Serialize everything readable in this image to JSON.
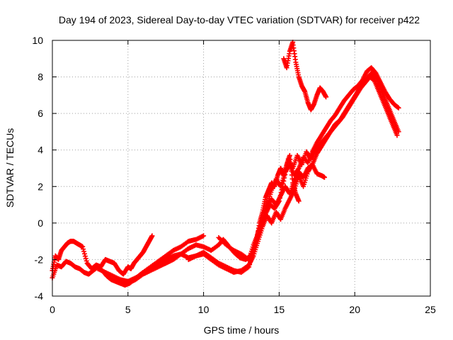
{
  "chart_data": {
    "type": "scatter",
    "title": "Day 194 of 2023, Sidereal Day-to-day VTEC variation (SDTVAR) for receiver p422",
    "xlabel": "GPS time / hours",
    "ylabel": "SDTVAR / TECUs",
    "xlim": [
      0,
      25
    ],
    "ylim": [
      -4,
      10
    ],
    "xticks": [
      "0",
      "5",
      "10",
      "15",
      "20",
      "25"
    ],
    "yticks": [
      "-4",
      "-2",
      "0",
      "2",
      "4",
      "6",
      "8",
      "10"
    ],
    "grid": true,
    "marker": "+",
    "color": "#ff0000",
    "series": [
      {
        "x": [
          0.0,
          0.2,
          0.4,
          0.6,
          0.8,
          1.0,
          1.2,
          1.4,
          1.6,
          1.8,
          2.0,
          2.3,
          2.6,
          2.9,
          3.2,
          3.5,
          3.8,
          4.1,
          4.4,
          4.7,
          5.0,
          5.2,
          5.4,
          5.6,
          5.8,
          6.0,
          6.2,
          6.4,
          6.6
        ],
        "y": [
          -2.6,
          -1.8,
          -2.0,
          -1.5,
          -1.3,
          -1.1,
          -1.0,
          -1.0,
          -1.1,
          -1.2,
          -1.3,
          -2.2,
          -2.5,
          -2.3,
          -2.4,
          -2.0,
          -2.1,
          -2.2,
          -2.6,
          -2.8,
          -2.4,
          -2.5,
          -2.2,
          -2.0,
          -1.8,
          -1.6,
          -1.3,
          -1.0,
          -0.7
        ]
      },
      {
        "x": [
          0.0,
          0.3,
          0.6,
          0.9,
          1.2,
          1.5,
          1.8,
          2.1,
          2.4,
          2.7,
          3.0,
          3.3,
          3.6,
          3.9,
          4.2,
          4.5,
          4.8,
          5.1,
          5.4,
          5.7,
          6.0,
          6.5,
          7.0,
          7.5,
          8.0,
          8.5,
          9.0,
          9.5,
          10.0
        ],
        "y": [
          -3.0,
          -2.3,
          -2.4,
          -2.1,
          -2.2,
          -2.4,
          -2.5,
          -2.7,
          -2.8,
          -2.6,
          -2.4,
          -2.6,
          -2.9,
          -3.1,
          -3.2,
          -3.3,
          -3.4,
          -3.3,
          -3.1,
          -2.9,
          -2.7,
          -2.4,
          -2.1,
          -1.8,
          -1.5,
          -1.3,
          -1.0,
          -0.9,
          -0.7
        ]
      },
      {
        "x": [
          3.0,
          3.5,
          4.0,
          4.5,
          5.0,
          5.5,
          6.0,
          6.5,
          7.0,
          7.5,
          8.0,
          8.5,
          9.0,
          9.5,
          10.0,
          10.5,
          11.0,
          11.5,
          12.0,
          12.5,
          13.0,
          13.3,
          13.6,
          13.9,
          14.2,
          14.5,
          14.8,
          15.1,
          15.4,
          15.7,
          16.0,
          16.3,
          16.6,
          16.9,
          17.2,
          17.5,
          17.8,
          18.0
        ],
        "y": [
          -2.5,
          -2.7,
          -2.9,
          -3.1,
          -3.2,
          -3.0,
          -2.8,
          -2.5,
          -2.2,
          -2.0,
          -1.8,
          -1.7,
          -1.9,
          -1.8,
          -1.6,
          -1.9,
          -2.2,
          -2.4,
          -2.6,
          -2.7,
          -2.4,
          -1.5,
          -0.5,
          0.2,
          0.9,
          1.3,
          1.0,
          1.5,
          2.0,
          1.6,
          2.3,
          2.8,
          2.5,
          3.0,
          3.2,
          2.7,
          2.6,
          2.5
        ]
      },
      {
        "x": [
          5.0,
          5.5,
          6.0,
          6.5,
          7.0,
          7.5,
          8.0,
          8.5,
          9.0,
          9.5,
          10.0,
          10.5,
          11.0,
          11.3,
          11.6,
          12.0,
          12.4,
          12.8,
          13.2,
          13.5,
          13.8,
          14.1,
          14.4,
          14.7,
          15.0,
          15.3,
          15.6,
          15.9,
          16.2,
          16.5,
          16.8,
          17.1,
          17.4,
          17.7,
          18.0,
          18.3,
          18.6,
          18.9,
          19.2,
          19.5,
          19.8,
          20.1,
          20.4,
          20.7,
          21.0,
          21.3,
          21.6,
          21.9,
          22.2,
          22.5,
          22.8
        ],
        "y": [
          -3.3,
          -3.1,
          -2.8,
          -2.6,
          -2.4,
          -2.2,
          -2.0,
          -1.7,
          -1.4,
          -1.2,
          -1.3,
          -1.5,
          -1.2,
          -0.9,
          -1.2,
          -1.6,
          -1.9,
          -2.0,
          -1.7,
          -1.0,
          -0.3,
          0.5,
          1.0,
          0.8,
          1.2,
          2.3,
          3.5,
          3.0,
          3.7,
          3.2,
          3.9,
          3.5,
          4.0,
          4.3,
          4.6,
          4.9,
          5.2,
          5.5,
          5.8,
          6.2,
          6.6,
          7.0,
          7.4,
          7.7,
          8.0,
          7.8,
          7.2,
          6.6,
          6.0,
          5.4,
          4.8
        ]
      },
      {
        "x": [
          9.0,
          9.5,
          10.0,
          10.5,
          11.0,
          11.5,
          12.0,
          12.5,
          13.0,
          13.3,
          13.6,
          13.9,
          14.2,
          14.5,
          14.8,
          15.1,
          15.4,
          15.7,
          16.0,
          16.3,
          16.6,
          16.9,
          17.2,
          17.5,
          17.8,
          18.1,
          18.4,
          18.7,
          19.0,
          19.3,
          19.6,
          19.9,
          20.2,
          20.5,
          20.8,
          21.1,
          21.4,
          21.7,
          22.0,
          22.3,
          22.6,
          22.9
        ],
        "y": [
          -2.0,
          -1.8,
          -1.7,
          -2.0,
          -2.3,
          -2.5,
          -2.7,
          -2.6,
          -2.3,
          -1.8,
          -1.0,
          -0.2,
          0.4,
          0.0,
          0.6,
          0.2,
          0.8,
          1.3,
          1.8,
          2.6,
          2.0,
          2.8,
          3.2,
          3.8,
          4.2,
          4.6,
          5.0,
          5.4,
          5.6,
          6.0,
          6.4,
          6.8,
          7.2,
          7.6,
          7.9,
          8.2,
          8.0,
          7.4,
          6.8,
          6.2,
          5.6,
          5.0
        ]
      },
      {
        "x": [
          11.0,
          11.5,
          12.0,
          12.5,
          13.0,
          13.3,
          13.6,
          13.9,
          14.2,
          14.5,
          14.8,
          15.1,
          15.4,
          15.7,
          16.0,
          16.3,
          16.6,
          16.9,
          17.2,
          17.5,
          17.8,
          18.1,
          18.4,
          18.7,
          19.0,
          19.3,
          19.6,
          19.9,
          20.2,
          20.5,
          20.8,
          21.1,
          21.4,
          21.7,
          22.0,
          22.3,
          22.6,
          22.9
        ],
        "y": [
          -0.8,
          -1.2,
          -1.5,
          -1.7,
          -2.0,
          -1.2,
          -0.6,
          0.2,
          1.0,
          1.8,
          2.4,
          2.0,
          2.8,
          3.2,
          2.6,
          3.0,
          3.6,
          3.3,
          3.9,
          4.4,
          4.8,
          5.2,
          5.6,
          5.9,
          6.3,
          6.7,
          7.0,
          7.3,
          7.5,
          7.8,
          8.3,
          8.5,
          8.2,
          7.7,
          7.2,
          6.8,
          6.5,
          6.3
        ]
      },
      {
        "x": [
          13.5,
          13.7,
          13.9,
          14.1,
          14.3,
          14.5,
          14.7,
          14.9,
          15.1,
          15.3,
          15.5,
          15.7,
          15.9,
          16.1,
          16.3
        ],
        "y": [
          -1.0,
          0.0,
          0.6,
          1.4,
          1.8,
          2.2,
          2.0,
          2.6,
          3.0,
          2.6,
          3.2,
          3.7,
          2.2,
          1.6,
          1.2
        ]
      },
      {
        "x": [
          15.3,
          15.5,
          15.7,
          15.9,
          16.1,
          16.3,
          16.5,
          16.7,
          16.9,
          17.1,
          17.3,
          17.5,
          17.7,
          17.9,
          18.1
        ],
        "y": [
          9.0,
          8.5,
          9.4,
          9.9,
          8.8,
          8.0,
          7.5,
          7.2,
          6.6,
          6.2,
          6.5,
          7.0,
          7.4,
          7.2,
          6.9
        ]
      }
    ]
  }
}
